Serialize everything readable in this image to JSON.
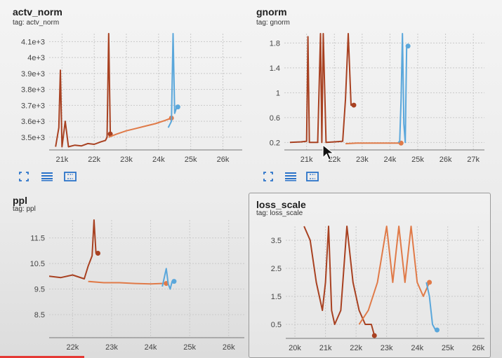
{
  "colors": {
    "run_dark": "#a84121",
    "run_orange": "#e07a48",
    "run_blue": "#5aa7db",
    "grid": "#c9c9c9",
    "toolbar_icon": "#2b73c9"
  },
  "toolbar": {
    "fit_icon": "fit-to-domain-icon",
    "log_icon": "toggle-log-scale-icon",
    "range_icon": "fit-data-range-icon"
  },
  "charts": {
    "actv_norm": {
      "title": "actv_norm",
      "tag": "tag: actv_norm",
      "xticks": [
        "21k",
        "22k",
        "23k",
        "24k",
        "25k",
        "26k"
      ],
      "yticks": [
        "3.5e+3",
        "3.6e+3",
        "3.7e+3",
        "3.8e+3",
        "3.9e+3",
        "4e+3",
        "4.1e+3"
      ]
    },
    "gnorm": {
      "title": "gnorm",
      "tag": "tag: gnorm",
      "xticks": [
        "21k",
        "22k",
        "23k",
        "24k",
        "25k",
        "26k",
        "27k"
      ],
      "yticks": [
        "0.2",
        "0.6",
        "1",
        "1.4",
        "1.8"
      ]
    },
    "ppl": {
      "title": "ppl",
      "tag": "tag: ppl",
      "xticks": [
        "22k",
        "23k",
        "24k",
        "25k",
        "26k"
      ],
      "yticks": [
        "8.5",
        "9.5",
        "10.5",
        "11.5"
      ]
    },
    "loss_scale": {
      "title": "loss_scale",
      "tag": "tag: loss_scale",
      "xticks": [
        "20k",
        "21k",
        "22k",
        "23k",
        "24k",
        "25k",
        "26k"
      ],
      "yticks": [
        "0.5",
        "1.5",
        "2.5",
        "3.5"
      ]
    }
  },
  "chart_data": [
    {
      "type": "line",
      "title": "actv_norm",
      "xlim": [
        20600,
        26600
      ],
      "ylim": [
        3420,
        4150
      ],
      "grid": true,
      "series": [
        {
          "color": "#a84121",
          "x": [
            20800,
            20900,
            20950,
            21000,
            21100,
            21200,
            21400,
            21600,
            21800,
            22000,
            22200,
            22350,
            22400,
            22450,
            22500
          ],
          "y": [
            3440,
            3560,
            3920,
            3440,
            3600,
            3440,
            3450,
            3445,
            3460,
            3455,
            3470,
            3480,
            3500,
            4150,
            3520
          ]
        },
        {
          "color": "#e07a48",
          "x": [
            22450,
            22700,
            23000,
            23300,
            23600,
            23900,
            24200,
            24400
          ],
          "y": [
            3500,
            3520,
            3540,
            3555,
            3570,
            3585,
            3605,
            3620
          ]
        },
        {
          "color": "#5aa7db",
          "x": [
            24300,
            24400,
            24450,
            24500,
            24550,
            24600
          ],
          "y": [
            3560,
            3600,
            4150,
            3650,
            3680,
            3690
          ]
        }
      ]
    },
    {
      "type": "line",
      "title": "gnorm",
      "xlim": [
        20200,
        27400
      ],
      "ylim": [
        0.08,
        1.95
      ],
      "grid": true,
      "series": [
        {
          "color": "#a84121",
          "x": [
            20400,
            20800,
            21000,
            21050,
            21100,
            21400,
            21500,
            21550,
            21600,
            21700,
            22000,
            22300,
            22400,
            22500,
            22600,
            22700
          ],
          "y": [
            0.2,
            0.21,
            0.22,
            1.9,
            0.2,
            0.2,
            1.95,
            0.2,
            1.95,
            0.2,
            0.21,
            0.22,
            0.9,
            1.95,
            0.8,
            0.8
          ]
        },
        {
          "color": "#e07a48",
          "x": [
            22400,
            22800,
            23200,
            23600,
            24000,
            24300,
            24400
          ],
          "y": [
            0.18,
            0.19,
            0.19,
            0.19,
            0.19,
            0.19,
            0.19
          ]
        },
        {
          "color": "#5aa7db",
          "x": [
            24300,
            24350,
            24400,
            24450,
            24500,
            24550,
            24600,
            24650
          ],
          "y": [
            0.2,
            0.22,
            0.9,
            1.95,
            0.5,
            0.2,
            1.75,
            1.75
          ]
        }
      ]
    },
    {
      "type": "line",
      "title": "ppl",
      "xlim": [
        21400,
        26400
      ],
      "ylim": [
        7.6,
        12.2
      ],
      "grid": true,
      "series": [
        {
          "color": "#a84121",
          "x": [
            21400,
            21700,
            22000,
            22300,
            22400,
            22500,
            22550,
            22600,
            22650
          ],
          "y": [
            10.0,
            9.95,
            10.05,
            9.9,
            10.4,
            10.8,
            12.2,
            10.9,
            10.9
          ]
        },
        {
          "color": "#e07a48",
          "x": [
            22400,
            22800,
            23200,
            23600,
            24000,
            24300,
            24400
          ],
          "y": [
            9.8,
            9.75,
            9.75,
            9.72,
            9.7,
            9.72,
            9.72
          ]
        },
        {
          "color": "#5aa7db",
          "x": [
            24300,
            24400,
            24450,
            24500,
            24550,
            24600
          ],
          "y": [
            9.6,
            10.3,
            9.7,
            9.5,
            9.8,
            9.8
          ]
        }
      ]
    },
    {
      "type": "line",
      "title": "loss_scale",
      "xlim": [
        19700,
        26200
      ],
      "ylim": [
        0,
        4
      ],
      "grid": true,
      "series": [
        {
          "color": "#a84121",
          "x": [
            20300,
            20500,
            20700,
            20900,
            21000,
            21100,
            21200,
            21300,
            21500,
            21700,
            21900,
            22100,
            22300,
            22500,
            22600
          ],
          "y": [
            4,
            3.5,
            2,
            1,
            2,
            4,
            1,
            0.5,
            1,
            4,
            2,
            1,
            0.5,
            0.5,
            0.1
          ]
        },
        {
          "color": "#e07a48",
          "x": [
            22100,
            22400,
            22700,
            23000,
            23200,
            23400,
            23600,
            23800,
            24000,
            24200,
            24400
          ],
          "y": [
            0.5,
            1,
            2,
            4,
            2,
            4,
            2,
            4,
            2,
            1.5,
            2
          ]
        },
        {
          "color": "#5aa7db",
          "x": [
            24300,
            24400,
            24500,
            24600,
            24650
          ],
          "y": [
            2,
            1.5,
            0.5,
            0.3,
            0.3
          ]
        }
      ]
    }
  ]
}
